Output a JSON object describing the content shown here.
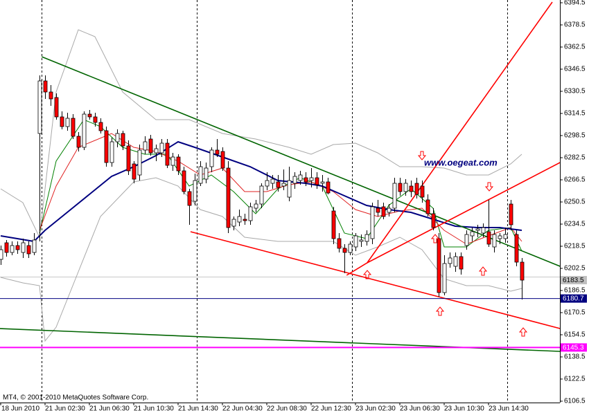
{
  "chart_data": {
    "type": "candlestick",
    "categories": [
      "18 Jun 2010",
      null,
      null,
      null,
      null,
      null,
      null,
      null,
      "21 Jun 02:30",
      null,
      null,
      null,
      null,
      null,
      null,
      null,
      "21 Jun 06:30",
      null,
      null,
      null,
      null,
      null,
      null,
      null,
      "21 Jun 10:30",
      null,
      null,
      null,
      null,
      null,
      null,
      null,
      "21 Jun 14:30",
      null,
      null,
      null,
      null,
      null,
      null,
      null,
      "22 Jun 04:30",
      null,
      null,
      null,
      null,
      null,
      null,
      null,
      "22 Jun 08:30",
      null,
      null,
      null,
      null,
      null,
      null,
      null,
      "22 Jun 12:30",
      null,
      null,
      null,
      null,
      null,
      null,
      null,
      "23 Jun 02:30",
      null,
      null,
      null,
      null,
      null,
      null,
      null,
      "23 Jun 06:30",
      null,
      null,
      null,
      null,
      null,
      null,
      null,
      "23 Jun 10:30",
      null,
      null,
      null,
      null,
      null,
      null,
      null,
      "23 Jun 14:30",
      null,
      null,
      null,
      null,
      null,
      null
    ],
    "open": [
      6209,
      6221,
      6214,
      6219,
      6214,
      6219,
      6214,
      6300,
      6338,
      6330,
      6326,
      6312,
      6305,
      6311,
      6298,
      6290,
      6314,
      6312,
      6308,
      6302,
      6279,
      6294,
      6300,
      6291,
      6278,
      6270,
      6288,
      6296,
      6286,
      6286,
      6293,
      6277,
      6283,
      6273,
      6258,
      6251,
      6264,
      6267,
      6276,
      6288,
      6287,
      6275,
      6233,
      6236,
      6238,
      6237,
      6246,
      6249,
      6262,
      6264,
      6265,
      6262,
      6254,
      6264,
      6266,
      6268,
      6266,
      6268,
      6264,
      6265,
      6244,
      6224,
      6217,
      6214,
      6218,
      6222,
      6222,
      6224,
      6246,
      6247,
      6243,
      6246,
      6264,
      6258,
      6262,
      6264,
      6262,
      6252,
      6242,
      6224,
      6185,
      6206,
      6204,
      6211,
      6219,
      6226,
      6230,
      6228,
      6229,
      6218,
      6224,
      6224,
      6249,
      6227,
      6207
    ],
    "high": [
      6219,
      6223,
      6222,
      6222,
      6224,
      6222,
      6228,
      6342,
      6342,
      6335,
      6329,
      6316,
      6315,
      6314,
      6301,
      6316,
      6317,
      6315,
      6311,
      6305,
      6297,
      6303,
      6302,
      6295,
      6280,
      6292,
      6298,
      6299,
      6292,
      6296,
      6296,
      6286,
      6285,
      6276,
      6260,
      6271,
      6280,
      6279,
      6290,
      6296,
      6290,
      6280,
      6240,
      6245,
      6242,
      6250,
      6252,
      6264,
      6272,
      6270,
      6270,
      6274,
      6276,
      6272,
      6273,
      6272,
      6275,
      6272,
      6270,
      6268,
      6247,
      6228,
      6220,
      6222,
      6228,
      6227,
      6230,
      6250,
      6252,
      6250,
      6249,
      6268,
      6268,
      6267,
      6266,
      6268,
      6266,
      6256,
      6246,
      6228,
      6212,
      6214,
      6214,
      6214,
      6230,
      6232,
      6234,
      6235,
      6252,
      6230,
      6228,
      6232,
      6252,
      6230,
      6210
    ],
    "low": [
      6205,
      6211,
      6212,
      6213,
      6210,
      6210,
      6212,
      6222,
      6325,
      6320,
      6310,
      6303,
      6302,
      6296,
      6287,
      6288,
      6310,
      6305,
      6300,
      6276,
      6276,
      6290,
      6288,
      6270,
      6264,
      6266,
      6285,
      6284,
      6280,
      6283,
      6275,
      6273,
      6270,
      6256,
      6234,
      6248,
      6262,
      6264,
      6272,
      6283,
      6273,
      6228,
      6230,
      6233,
      6234,
      6234,
      6243,
      6246,
      6259,
      6260,
      6258,
      6259,
      6251,
      6260,
      6263,
      6262,
      6261,
      6260,
      6258,
      6256,
      6220,
      6214,
      6199,
      6212,
      6215,
      6218,
      6219,
      6220,
      6240,
      6238,
      6240,
      6243,
      6255,
      6255,
      6254,
      6253,
      6250,
      6240,
      6230,
      6182,
      6183,
      6203,
      6200,
      6198,
      6216,
      6222,
      6225,
      6225,
      6218,
      6214,
      6220,
      6221,
      6230,
      6204,
      6180
    ],
    "close": [
      6216,
      6214,
      6219,
      6216,
      6221,
      6213,
      6223,
      6338,
      6330,
      6325,
      6312,
      6305,
      6311,
      6298,
      6290,
      6314,
      6312,
      6308,
      6302,
      6279,
      6294,
      6300,
      6291,
      6273,
      6267,
      6288,
      6294,
      6286,
      6289,
      6293,
      6277,
      6283,
      6273,
      6258,
      6248,
      6266,
      6276,
      6275,
      6288,
      6285,
      6275,
      6232,
      6238,
      6240,
      6237,
      6247,
      6249,
      6262,
      6266,
      6267,
      6261,
      6264,
      6266,
      6269,
      6270,
      6265,
      6268,
      6263,
      6265,
      6257,
      6224,
      6217,
      6214,
      6220,
      6226,
      6223,
      6227,
      6247,
      6243,
      6240,
      6246,
      6264,
      6258,
      6264,
      6258,
      6256,
      6254,
      6242,
      6232,
      6185,
      6206,
      6210,
      6211,
      6202,
      6227,
      6229,
      6231,
      6232,
      6220,
      6227,
      6226,
      6227,
      6234,
      6207,
      6194
    ],
    "up_color": "#ffffff",
    "down_color": "#ff0000",
    "ylim": [
      6105.5,
      6396.5
    ],
    "yticks": [
      6394.5,
      6378.5,
      6362.5,
      6346.5,
      6330.5,
      6314.5,
      6298.5,
      6282.5,
      6266.5,
      6250.5,
      6234.5,
      6218.5,
      6202.5,
      6186.5,
      6170.5,
      6154.5,
      6138.5,
      6122.5,
      6106.5
    ],
    "overlays": [
      {
        "color": "#a8a8a8",
        "width": 1,
        "x": [
          0,
          4,
          7,
          10,
          14,
          17,
          22,
          28,
          34,
          40,
          46,
          52,
          56,
          60,
          64,
          68,
          72,
          76,
          80,
          84,
          88,
          92,
          94
        ],
        "values": [
          6260,
          6250,
          6225,
          6330,
          6375,
          6370,
          6330,
          6310,
          6310,
          6300,
          6296,
          6290,
          6285,
          6292,
          6293,
          6286,
          6276,
          6276,
          6275,
          6270,
          6270,
          6278,
          6285
        ]
      },
      {
        "color": "#a8a8a8",
        "width": 1,
        "x": [
          0,
          4,
          7,
          8,
          10,
          14,
          18,
          24,
          28,
          32,
          36,
          40,
          44,
          50,
          56,
          60,
          64,
          68,
          72,
          76,
          80,
          84,
          88,
          92,
          94
        ],
        "values": [
          6196,
          6192,
          6190,
          6150,
          6160,
          6200,
          6240,
          6265,
          6268,
          6262,
          6245,
          6240,
          6225,
          6222,
          6222,
          6222,
          6212,
          6218,
          6225,
          6216,
          6195,
          6190,
          6190,
          6186,
          6188
        ]
      },
      {
        "color": "#008000",
        "width": 1,
        "x": [
          7,
          10,
          15,
          18,
          22,
          26,
          30,
          34,
          38,
          42,
          46,
          50,
          54,
          58,
          62,
          66,
          70,
          74,
          78,
          80,
          84,
          88,
          92,
          94
        ],
        "values": [
          6228,
          6280,
          6310,
          6305,
          6290,
          6285,
          6285,
          6262,
          6270,
          6258,
          6242,
          6260,
          6268,
          6262,
          6228,
          6224,
          6248,
          6260,
          6246,
          6218,
          6218,
          6230,
          6232,
          6215
        ]
      },
      {
        "color": "#e02020",
        "width": 1,
        "x": [
          7,
          10,
          14,
          20,
          24,
          28,
          32,
          36,
          40,
          44,
          48,
          52,
          56,
          60,
          64,
          68,
          72,
          76,
          80,
          84,
          88,
          92,
          94
        ],
        "values": [
          6230,
          6262,
          6290,
          6300,
          6290,
          6287,
          6280,
          6270,
          6275,
          6258,
          6258,
          6263,
          6265,
          6258,
          6245,
          6240,
          6244,
          6246,
          6230,
          6220,
          6226,
          6232,
          6222
        ]
      },
      {
        "color": "#000080",
        "width": 2,
        "x": [
          0,
          6,
          8,
          12,
          16,
          20,
          24,
          28,
          32,
          35,
          40,
          45,
          50,
          55,
          58,
          62,
          66,
          70,
          74,
          78,
          82,
          86,
          90,
          94
        ],
        "values": [
          6226,
          6222,
          6230,
          6243,
          6256,
          6269,
          6276,
          6284,
          6294,
          6290,
          6283,
          6276,
          6266,
          6264,
          6262,
          6255,
          6248,
          6245,
          6243,
          6238,
          6233,
          6232,
          6232,
          6230
        ]
      }
    ],
    "trendlines": [
      {
        "color": "#006400",
        "x": [
          7.4,
          100.9
        ],
        "values": [
          6355.5,
          6204
        ]
      },
      {
        "color": "#006400",
        "x": [
          -0.2,
          100.9
        ],
        "values": [
          6159,
          6142.5
        ]
      },
      {
        "color": "#ff0000",
        "x": [
          34.25,
          100.9
        ],
        "values": [
          6229,
          6159
        ]
      },
      {
        "color": "#ff0000",
        "x": [
          62.4,
          66.1,
          99.5
        ],
        "values": [
          6197.5,
          6206.5,
          6395
        ]
      },
      {
        "color": "#ff0000",
        "x": [
          66.1,
          100.9
        ],
        "values": [
          6206.5,
          6279
        ]
      }
    ],
    "hlines": [
      {
        "value": 6180.7,
        "label": "6180.7",
        "color": "#000080"
      },
      {
        "value": 6145.3,
        "label": "6145.3",
        "color": "#ff00ff"
      }
    ],
    "bid_label": "6183.5",
    "watermark": "www.oegeat.com",
    "footer": "MT4, © 2001-2010 MetaQuotes Software Corp."
  }
}
